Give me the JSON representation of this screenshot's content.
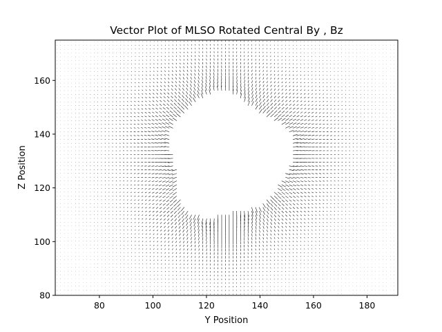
{
  "chart_data": {
    "type": "quiver",
    "title": "Vector Plot of MLSO Rotated Central By , Bz",
    "xlabel": "Y Position",
    "ylabel": "Z Position",
    "xlim": [
      63.5,
      191.5
    ],
    "ylim": [
      80,
      175
    ],
    "xticks": [
      80,
      100,
      120,
      140,
      160,
      180
    ],
    "yticks": [
      80,
      100,
      120,
      140,
      160
    ],
    "grid": false,
    "legend": "none",
    "arrow_color": "#000000",
    "occulting_disk": {
      "center": [
        128,
        132
      ],
      "approx_radius": 22,
      "note": "region of near-zero field (masked)"
    },
    "field_model": "radial outward field strongest near disk limb, decaying with distance; downward-pointing cusp below disk near y=128"
  }
}
